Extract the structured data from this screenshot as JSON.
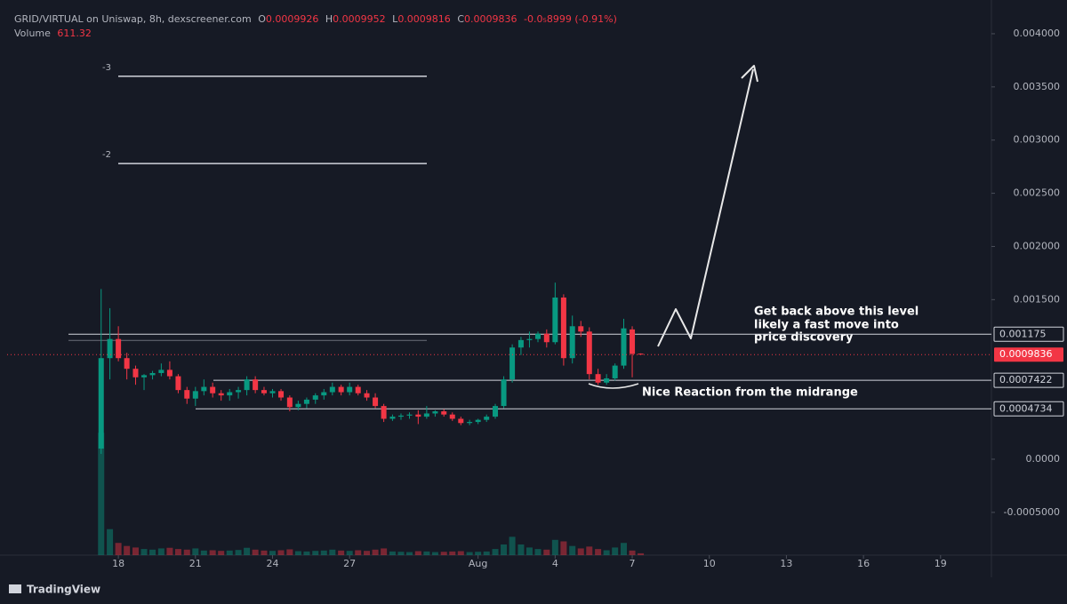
{
  "chart_data": {
    "type": "candlestick",
    "title": "GRID/VIRTUAL on Uniswap, 8h, dexscreener.com",
    "ohlc_labels": [
      "O",
      "H",
      "L",
      "C"
    ],
    "change": "-0.0₅8999 (-0.91%)",
    "volume_label": "Volume",
    "x": [
      17.33,
      17.67,
      18,
      18.33,
      18.67,
      19,
      19.33,
      19.67,
      20,
      20.33,
      20.67,
      21,
      21.33,
      21.67,
      22,
      22.33,
      22.67,
      23,
      23.33,
      23.67,
      24,
      24.33,
      24.67,
      25,
      25.33,
      25.67,
      26,
      26.33,
      26.67,
      27,
      27.33,
      27.67,
      28,
      28.33,
      28.67,
      29,
      29.33,
      29.67,
      30,
      30.33,
      30.67,
      31,
      31.33,
      31.67,
      32,
      32.33,
      32.67,
      33,
      33.33,
      33.67,
      34,
      34.33,
      34.67,
      35,
      35.33,
      35.67,
      36,
      36.33,
      36.67,
      37,
      37.33,
      37.67,
      38,
      38.33
    ],
    "open": [
      0.0001,
      0.00095,
      0.00113,
      0.00095,
      0.00085,
      0.00077,
      0.00079,
      0.00081,
      0.00084,
      0.00078,
      0.00065,
      0.00057,
      0.00064,
      0.00068,
      0.00062,
      0.0006,
      0.00063,
      0.00065,
      0.00075,
      0.00065,
      0.00062,
      0.00064,
      0.00058,
      0.00049,
      0.00052,
      0.00056,
      0.0006,
      0.00063,
      0.00068,
      0.00063,
      0.00068,
      0.00062,
      0.00058,
      0.0005,
      0.00038,
      0.0004,
      0.00041,
      0.00042,
      0.0004,
      0.00043,
      0.00045,
      0.00042,
      0.00038,
      0.00034,
      0.00035,
      0.00037,
      0.0004,
      0.0005,
      0.00075,
      0.00105,
      0.00112,
      0.00113,
      0.00118,
      0.0011,
      0.00152,
      0.00095,
      0.00125,
      0.0012,
      0.0008,
      0.00072,
      0.00076,
      0.00088,
      0.00122,
      0.0009926
    ],
    "high": [
      0.0016,
      0.00142,
      0.00125,
      0.001,
      0.00088,
      0.0008,
      0.00083,
      0.0009,
      0.00092,
      0.0008,
      0.00068,
      0.00068,
      0.00075,
      0.00072,
      0.00065,
      0.00066,
      0.00068,
      0.00078,
      0.00078,
      0.00068,
      0.00066,
      0.00066,
      0.0006,
      0.00055,
      0.00058,
      0.00062,
      0.00066,
      0.00072,
      0.0007,
      0.00072,
      0.0007,
      0.00065,
      0.00062,
      0.00052,
      0.00042,
      0.00043,
      0.00044,
      0.00046,
      0.0005,
      0.00046,
      0.00047,
      0.00044,
      0.0004,
      0.00037,
      0.00038,
      0.00042,
      0.00052,
      0.00078,
      0.00108,
      0.00115,
      0.0012,
      0.0012,
      0.00122,
      0.00166,
      0.00155,
      0.00135,
      0.0013,
      0.00124,
      0.00085,
      0.0008,
      0.0009,
      0.00132,
      0.00125,
      0.0009952
    ],
    "low": [
      5e-05,
      0.00075,
      0.00092,
      0.00075,
      0.0007,
      0.00065,
      0.00075,
      0.00078,
      0.00075,
      0.00062,
      0.00052,
      0.0005,
      0.0006,
      0.00058,
      0.00055,
      0.00055,
      0.00057,
      0.0006,
      0.00062,
      0.0006,
      0.00058,
      0.00055,
      0.00045,
      0.00046,
      0.00048,
      0.00052,
      0.00056,
      0.0006,
      0.0006,
      0.0006,
      0.0006,
      0.00055,
      0.00048,
      0.00035,
      0.00036,
      0.00037,
      0.00038,
      0.00033,
      0.00038,
      0.0004,
      0.0004,
      0.00036,
      0.00032,
      0.00032,
      0.00033,
      0.00035,
      0.00038,
      0.00048,
      0.00072,
      0.00098,
      0.00105,
      0.0011,
      0.00105,
      0.00108,
      0.00088,
      0.0009,
      0.00115,
      0.00075,
      0.0007,
      0.0007,
      0.00074,
      0.00085,
      0.00077,
      0.0009816
    ],
    "close": [
      0.00095,
      0.00113,
      0.00095,
      0.00085,
      0.00077,
      0.00079,
      0.00081,
      0.00084,
      0.00078,
      0.00065,
      0.00057,
      0.00064,
      0.00068,
      0.00062,
      0.0006,
      0.00063,
      0.00065,
      0.00075,
      0.00065,
      0.00062,
      0.00064,
      0.00058,
      0.00049,
      0.00052,
      0.00056,
      0.0006,
      0.00063,
      0.00068,
      0.00063,
      0.00068,
      0.00062,
      0.00058,
      0.0005,
      0.00038,
      0.0004,
      0.00041,
      0.00042,
      0.0004,
      0.00043,
      0.00045,
      0.00042,
      0.00038,
      0.00034,
      0.00035,
      0.00037,
      0.0004,
      0.0005,
      0.00075,
      0.00105,
      0.00112,
      0.00113,
      0.00118,
      0.0011,
      0.00152,
      0.00095,
      0.00125,
      0.0012,
      0.0008,
      0.00072,
      0.00076,
      0.00088,
      0.00123,
      0.00099,
      0.0009836
    ],
    "volume": [
      40000,
      8500,
      4000,
      3000,
      2500,
      2000,
      1800,
      2200,
      2400,
      2000,
      1800,
      2200,
      1500,
      1600,
      1400,
      1500,
      1700,
      2400,
      1800,
      1500,
      1400,
      1600,
      1900,
      1300,
      1200,
      1400,
      1500,
      1800,
      1500,
      1400,
      1600,
      1400,
      1800,
      2200,
      1200,
      1100,
      1000,
      1300,
      1200,
      1000,
      1100,
      1200,
      1300,
      1000,
      1100,
      1200,
      2000,
      3500,
      6000,
      3500,
      2500,
      2000,
      1800,
      5000,
      4500,
      3000,
      2200,
      2800,
      2000,
      1600,
      2500,
      4000,
      1500,
      611.32
    ],
    "up_color": "#089981",
    "down_color": "#f23645",
    "xlim": [
      13.67,
      51.98
    ],
    "xticks": [
      18,
      21,
      24,
      27,
      {
        "value": 32,
        "label": "Aug"
      },
      {
        "value": 35,
        "label": "4"
      },
      {
        "value": 38,
        "label": "7"
      },
      {
        "value": 41,
        "label": "10"
      },
      {
        "value": 44,
        "label": "13"
      },
      {
        "value": 47,
        "label": "16"
      },
      {
        "value": 50,
        "label": "19"
      }
    ],
    "ylim": [
      -0.000902,
      0.004317
    ],
    "yticks": [
      {
        "value": 0.004,
        "label": "0.004000"
      },
      {
        "value": 0.0035,
        "label": "0.003500"
      },
      {
        "value": 0.003,
        "label": "0.003000"
      },
      {
        "value": 0.0025,
        "label": "0.002500"
      },
      {
        "value": 0.002,
        "label": "0.002000"
      },
      {
        "value": 0.0015,
        "label": "0.001500"
      },
      {
        "value": 0,
        "label": "0.0000"
      },
      {
        "value": -0.0005,
        "label": "-0.0005000"
      }
    ],
    "volume_lim": [
      0,
      45000
    ],
    "grid": false,
    "levels": [
      0.001175,
      0.0007422,
      0.0004734
    ],
    "fib_lines": [
      {
        "value": 0.0036,
        "label": "-3"
      },
      {
        "value": 0.00278,
        "label": "-2"
      }
    ],
    "annotations": {
      "breakout": [
        "Get back above this level",
        "likely a fast move into",
        "price discovery"
      ],
      "reaction": "Nice Reaction from the midrange"
    },
    "branding": "TradingView"
  }
}
